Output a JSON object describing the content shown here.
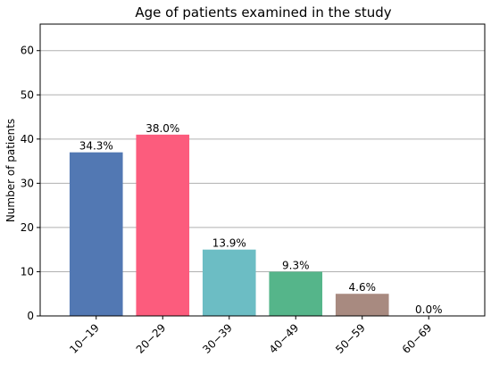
{
  "chart_data": {
    "type": "bar",
    "title": "Age of patients examined in the study",
    "xlabel": "",
    "ylabel": "Number of patients",
    "categories": [
      "10−19",
      "20−29",
      "30−39",
      "40−49",
      "50−59",
      "60−69"
    ],
    "values": [
      37,
      41,
      15,
      10,
      5,
      0
    ],
    "data_labels": [
      "34.3%",
      "38.0%",
      "13.9%",
      "9.3%",
      "4.6%",
      "0.0%"
    ],
    "colors": [
      "#5278b3",
      "#fc5c7d",
      "#6cbdc4",
      "#55b58a",
      "#a88a80",
      "#7f5f9f"
    ],
    "ylim": [
      0,
      66
    ],
    "yticks": [
      0,
      10,
      20,
      30,
      40,
      50,
      60
    ],
    "grid": "horizontal",
    "legend": "none"
  }
}
